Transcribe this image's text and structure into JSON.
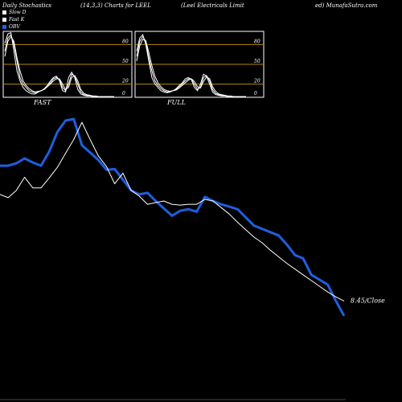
{
  "header": {
    "left": "Daily Stochastics",
    "params": "(14,3,3) Charts for LEEL",
    "company": "(Leel Electricals Limit",
    "site": "ed) MunafaSutra.com"
  },
  "legend": [
    {
      "label": "Slow  D",
      "color": "#ffffff"
    },
    {
      "label": "Fast K",
      "color": "#ffffff"
    },
    {
      "label": "OBV",
      "color": "#1e5fe0"
    }
  ],
  "colors": {
    "obv": "#1e5fe0",
    "close": "#ffffff",
    "level": "#b8860b",
    "background": "#000000"
  },
  "chart_data": [
    {
      "type": "line",
      "title": "FAST",
      "y_ticks": [
        "80",
        "50",
        "20",
        "0"
      ],
      "level_lines": [
        80,
        50,
        20
      ],
      "ylim": [
        0,
        100
      ],
      "x": [
        0,
        1,
        2,
        3,
        4,
        5,
        6,
        7,
        8,
        9,
        10,
        11,
        12,
        13,
        14,
        15,
        16,
        17,
        18,
        19,
        20,
        21,
        22,
        23,
        24,
        25,
        26,
        27,
        28,
        29,
        30,
        31,
        32,
        33,
        34,
        35,
        36
      ],
      "series": [
        {
          "values": [
            82,
            96,
            98,
            70,
            40,
            25,
            15,
            10,
            7,
            5,
            5,
            8,
            10,
            12,
            18,
            25,
            30,
            32,
            25,
            10,
            8,
            30,
            38,
            30,
            12,
            5,
            3,
            2,
            2,
            1,
            1,
            1,
            1,
            1,
            1,
            1,
            1
          ]
        },
        {
          "values": [
            70,
            90,
            95,
            80,
            55,
            30,
            20,
            15,
            10,
            8,
            7,
            8,
            10,
            13,
            18,
            22,
            28,
            30,
            27,
            15,
            10,
            20,
            35,
            32,
            20,
            8,
            4,
            3,
            2,
            2,
            1,
            1,
            1,
            1,
            1,
            1,
            1
          ]
        },
        {
          "values": [
            62,
            85,
            92,
            85,
            60,
            40,
            25,
            18,
            13,
            10,
            8,
            9,
            10,
            12,
            16,
            20,
            25,
            28,
            28,
            20,
            12,
            15,
            30,
            33,
            25,
            12,
            6,
            4,
            3,
            2,
            2,
            1,
            1,
            1,
            1,
            1,
            1
          ]
        }
      ]
    },
    {
      "type": "line",
      "title": "FULL",
      "y_ticks": [
        "80",
        "50",
        "20",
        "0"
      ],
      "level_lines": [
        80,
        50,
        20
      ],
      "ylim": [
        0,
        100
      ],
      "x": [
        0,
        1,
        2,
        3,
        4,
        5,
        6,
        7,
        8,
        9,
        10,
        11,
        12,
        13,
        14,
        15,
        16,
        17,
        18,
        19,
        20,
        21,
        22,
        23,
        24,
        25,
        26,
        27,
        28,
        29,
        30,
        31,
        32,
        33,
        34,
        35,
        36
      ],
      "series": [
        {
          "values": [
            70,
            90,
            95,
            80,
            55,
            30,
            20,
            15,
            10,
            8,
            7,
            8,
            10,
            13,
            18,
            22,
            28,
            30,
            27,
            15,
            10,
            20,
            35,
            32,
            20,
            8,
            4,
            3,
            2,
            2,
            1,
            1,
            1,
            1,
            1,
            1,
            1
          ]
        },
        {
          "values": [
            62,
            85,
            92,
            85,
            60,
            40,
            25,
            18,
            13,
            10,
            8,
            9,
            10,
            12,
            16,
            20,
            25,
            28,
            28,
            20,
            12,
            15,
            30,
            33,
            25,
            12,
            6,
            4,
            3,
            2,
            2,
            1,
            1,
            1,
            1,
            1,
            1
          ]
        },
        {
          "values": [
            55,
            78,
            88,
            86,
            68,
            48,
            32,
            22,
            16,
            12,
            10,
            9,
            10,
            11,
            14,
            18,
            22,
            26,
            28,
            24,
            16,
            14,
            24,
            31,
            28,
            16,
            9,
            5,
            4,
            3,
            2,
            2,
            1,
            1,
            1,
            1,
            1
          ]
        }
      ]
    },
    {
      "type": "line",
      "annotation": "8.45/Close",
      "x": [
        0,
        1,
        2,
        3,
        4,
        5,
        6,
        7,
        8,
        9,
        10,
        11,
        12,
        13,
        14,
        15,
        16,
        17,
        18,
        19,
        20,
        21,
        22,
        23,
        24,
        25,
        26,
        27,
        28,
        29,
        30,
        31,
        32,
        33,
        34,
        35,
        36,
        37,
        38,
        39,
        40,
        41,
        42
      ],
      "series": [
        {
          "name": "OBV",
          "color": "#1e5fe0",
          "values": [
            4.3,
            4.3,
            4.6,
            5.2,
            4.7,
            4.3,
            6.0,
            8.4,
            9.8,
            10.0,
            6.8,
            5.9,
            5.0,
            3.8,
            3.9,
            2.6,
            1.3,
            0.8,
            1.0,
            0.0,
            -0.9,
            -1.8,
            -1.2,
            -1.0,
            -1.3,
            0.5,
            0.0,
            -0.4,
            -0.7,
            -1.0,
            -2.0,
            -3.0,
            -3.4,
            -3.8,
            -4.2,
            -5.3,
            -6.6,
            -7.0,
            -9.0,
            -9.6,
            -10.2,
            -12.2,
            -14.0
          ]
        },
        {
          "name": "Close",
          "color": "#ffffff",
          "values": [
            0.8,
            0.4,
            1.3,
            2.9,
            1.6,
            1.6,
            2.8,
            4.1,
            5.8,
            7.5,
            9.6,
            7.5,
            5.5,
            4.2,
            2.1,
            3.4,
            1.3,
            0.6,
            -0.4,
            -0.2,
            0.0,
            -0.4,
            -0.5,
            -0.4,
            -0.4,
            0.2,
            0.0,
            -0.8,
            -1.6,
            -2.6,
            -3.5,
            -4.4,
            -5.1,
            -6.0,
            -6.8,
            -7.6,
            -8.3,
            -9.0,
            -9.7,
            -10.4,
            -11.1,
            -11.7,
            -12.2
          ]
        }
      ]
    }
  ]
}
